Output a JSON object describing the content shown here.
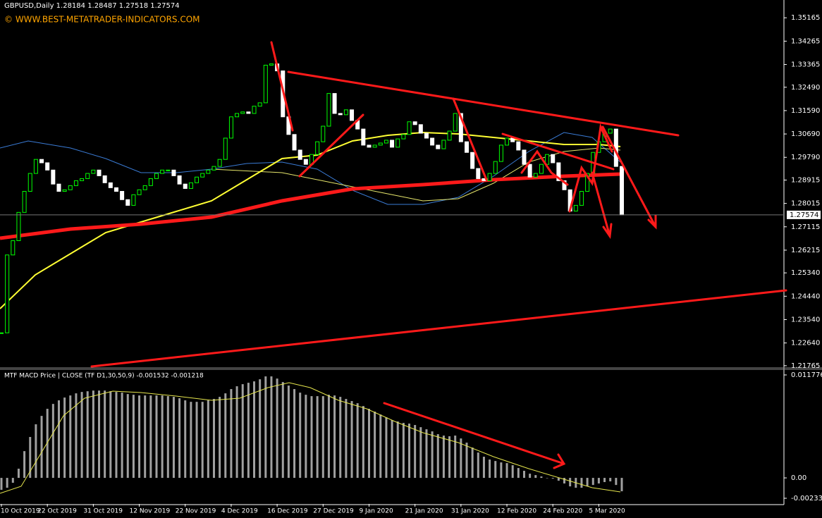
{
  "header": {
    "symbol": "GBPUSD,Daily  1.28184 1.28487 1.27518 1.27574",
    "copyright": "© WWW.BEST-METATRADER-INDICATORS.COM"
  },
  "chart_data": [
    {
      "type": "candlestick",
      "close": [
        1.2303,
        1.2603,
        1.2658,
        1.2767,
        1.2848,
        1.2917,
        1.2971,
        1.2958,
        1.293,
        1.2876,
        1.2848,
        1.2854,
        1.287,
        1.2889,
        1.2897,
        1.2917,
        1.293,
        1.2908,
        1.2881,
        1.2862,
        1.2848,
        1.2816,
        1.2794,
        1.2835,
        1.2854,
        1.287,
        1.2897,
        1.2917,
        1.293,
        1.293,
        1.2908,
        1.2876,
        1.2859,
        1.2881,
        1.2903,
        1.2917,
        1.293,
        1.2944,
        1.2971,
        1.3053,
        1.3135,
        1.3148,
        1.3154,
        1.3148,
        1.3176,
        1.3189,
        1.3334,
        1.3339,
        1.3312,
        1.3135,
        1.3067,
        1.3007,
        1.2971,
        1.2952,
        1.299,
        1.3039,
        1.3099,
        1.3225,
        1.3148,
        1.3143,
        1.3162,
        1.3121,
        1.3088,
        1.3026,
        1.3018,
        1.3026,
        1.3034,
        1.3045,
        1.3018,
        1.305,
        1.3067,
        1.3116,
        1.3105,
        1.3072,
        1.3053,
        1.3026,
        1.3012,
        1.3045,
        1.308,
        1.3148,
        1.3039,
        1.2998,
        1.2936,
        1.2897,
        1.2889,
        1.2917,
        1.2963,
        1.3026,
        1.3053,
        1.3039,
        1.3007,
        1.2952,
        1.2903,
        1.2917,
        1.2952,
        1.299,
        1.2958,
        1.2889,
        1.2854,
        1.2772,
        1.2794,
        1.2848,
        1.2917,
        1.2998,
        1.3039,
        1.3072,
        1.3088,
        1.2944,
        1.27574
      ],
      "ylim": [
        1.2168,
        1.3585
      ],
      "yticks": [
        1.35165,
        1.34265,
        1.33365,
        {
          "value": 1.3249,
          "label": "1.32490"
        },
        {
          "value": 1.3159,
          "label": "1.31590"
        },
        {
          "value": 1.3069,
          "label": "1.30690"
        },
        {
          "value": 1.2979,
          "label": "1.29790"
        },
        1.28915,
        1.28015,
        1.27115,
        1.26215,
        {
          "value": 1.2534,
          "label": "1.25340"
        },
        {
          "value": 1.2444,
          "label": "1.24440"
        },
        {
          "value": 1.2354,
          "label": "1.23540"
        },
        {
          "value": 1.2264,
          "label": "1.22640"
        },
        1.21765
      ],
      "last_price": 1.27574,
      "xticks": [
        {
          "value": 0,
          "label": "10 Oct 2019"
        },
        {
          "value": 8,
          "label": "22 Oct 2019"
        },
        {
          "value": 16,
          "label": "31 Oct 2019"
        },
        {
          "value": 24,
          "label": "12 Nov 2019"
        },
        {
          "value": 32,
          "label": "22 Nov 2019"
        },
        {
          "value": 40,
          "label": "4 Dec 2019"
        },
        {
          "value": 48,
          "label": "16 Dec 2019"
        },
        {
          "value": 56,
          "label": "27 Dec 2019"
        },
        {
          "value": 64,
          "label": "9 Jan 2020"
        },
        {
          "value": 72,
          "label": "21 Jan 2020"
        },
        {
          "value": 80,
          "label": "31 Jan 2020"
        },
        {
          "value": 88,
          "label": "12 Feb 2020"
        },
        {
          "value": 96,
          "label": "24 Feb 2020"
        },
        {
          "value": 104,
          "label": "5 Mar 2020"
        }
      ],
      "up_color": "#00ff00",
      "down_color": "#ffffff"
    },
    {
      "type": "bar",
      "title": "MTF MACD Price | CLOSE  (TF D1,30,50,9) -0.001532 -0.001218",
      "values": [
        -0.00137,
        -0.00113,
        -0.00056,
        0.00105,
        0.00306,
        0.00468,
        0.00613,
        0.00709,
        0.0079,
        0.00846,
        0.00887,
        0.00919,
        0.00943,
        0.00967,
        0.00983,
        0.00991,
        0.00999,
        0.00999,
        0.00999,
        0.00991,
        0.00983,
        0.00975,
        0.00959,
        0.00951,
        0.00943,
        0.00943,
        0.00943,
        0.00943,
        0.00943,
        0.00935,
        0.00927,
        0.00911,
        0.00887,
        0.0087,
        0.0087,
        0.0087,
        0.00887,
        0.00903,
        0.00927,
        0.00967,
        0.01016,
        0.01048,
        0.01072,
        0.01088,
        0.01104,
        0.01128,
        0.01161,
        0.01161,
        0.01136,
        0.01096,
        0.01056,
        0.01016,
        0.00975,
        0.00951,
        0.00935,
        0.00935,
        0.00935,
        0.00951,
        0.00943,
        0.00927,
        0.00903,
        0.00879,
        0.00854,
        0.00822,
        0.0079,
        0.00758,
        0.00725,
        0.00693,
        0.00661,
        0.00645,
        0.00629,
        0.00621,
        0.00605,
        0.0058,
        0.00556,
        0.00532,
        0.005,
        0.00484,
        0.00476,
        0.00484,
        0.00451,
        0.00403,
        0.00347,
        0.0029,
        0.00242,
        0.0021,
        0.00193,
        0.00177,
        0.00169,
        0.00145,
        0.00113,
        0.00081,
        0.00048,
        0.00032,
        0.00016,
        0,
        -8e-05,
        -0.00032,
        -0.00064,
        -0.00097,
        -0.00113,
        -0.00113,
        -0.00097,
        -0.00081,
        -0.00064,
        -0.00048,
        -0.0004,
        -0.00081,
        -0.001532
      ],
      "ylim": [
        -0.002977,
        0.012421
      ],
      "yticks": [
        0.011776,
        {
          "value": 0,
          "label": "0.00"
        },
        -0.002332
      ],
      "color": "#a0a0a0"
    }
  ]
}
